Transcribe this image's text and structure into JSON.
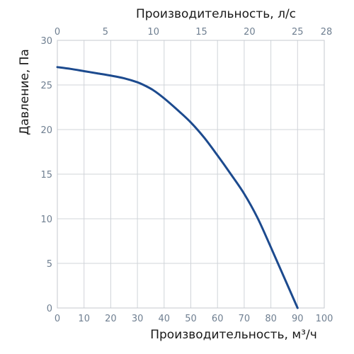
{
  "chart_data": {
    "type": "line",
    "xlabel": "Производительность, м³/ч",
    "x2label": "Производительность, л/с",
    "ylabel": "Давление, Па",
    "xlim": [
      0,
      100
    ],
    "x2lim": [
      0,
      27.78
    ],
    "ylim": [
      0,
      30
    ],
    "xticks": [
      0,
      10,
      20,
      30,
      40,
      50,
      60,
      70,
      80,
      90,
      100
    ],
    "x2ticks": [
      0,
      5,
      10,
      15,
      20,
      25,
      28
    ],
    "yticks": [
      0,
      5,
      10,
      15,
      20,
      25,
      30
    ],
    "grid": true,
    "color": "#1c4a8e",
    "series": [
      {
        "x": [
          0,
          5,
          10,
          15,
          20,
          25,
          30,
          33,
          36,
          40,
          45,
          50,
          55,
          60,
          65,
          70,
          75,
          80,
          85,
          90
        ],
        "y": [
          27,
          26.8,
          26.55,
          26.3,
          26.05,
          25.75,
          25.3,
          24.9,
          24.4,
          23.5,
          22.2,
          20.8,
          19.1,
          17.1,
          15,
          12.8,
          10.1,
          6.8,
          3.4,
          0
        ]
      }
    ]
  }
}
